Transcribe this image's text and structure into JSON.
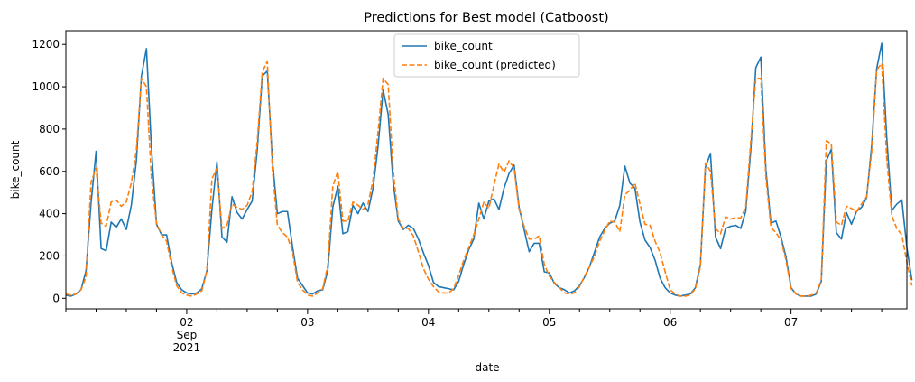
{
  "chart_data": {
    "type": "line",
    "title": "Predictions for Best model (Catboost)",
    "xlabel": "date",
    "ylabel": "bike_count",
    "ylim": [
      -50,
      1265
    ],
    "y_ticks": [
      0,
      200,
      400,
      600,
      800,
      1000,
      1200
    ],
    "x_ticks": [
      {
        "hour": 24,
        "label": "02",
        "sub": "Sep",
        "sub2": "2021"
      },
      {
        "hour": 48,
        "label": "03"
      },
      {
        "hour": 72,
        "label": "04"
      },
      {
        "hour": 96,
        "label": "05"
      },
      {
        "hour": 120,
        "label": "06"
      },
      {
        "hour": 144,
        "label": "07"
      }
    ],
    "x_range_hours": [
      0,
      167
    ],
    "x_start": "2021-09-01 00:00",
    "legend_position": "upper center",
    "colors": {
      "actual": "#1f77b4",
      "predicted": "#ff7f0e"
    },
    "series": [
      {
        "name": "bike_count",
        "style": "solid",
        "values": [
          15,
          10,
          20,
          40,
          130,
          450,
          695,
          235,
          225,
          360,
          335,
          375,
          325,
          440,
          650,
          1050,
          1180,
          710,
          350,
          300,
          300,
          170,
          75,
          40,
          25,
          20,
          25,
          45,
          130,
          420,
          645,
          290,
          265,
          480,
          405,
          375,
          420,
          460,
          700,
          1050,
          1075,
          655,
          400,
          410,
          410,
          245,
          95,
          60,
          25,
          20,
          35,
          40,
          130,
          430,
          530,
          305,
          315,
          440,
          400,
          450,
          410,
          520,
          720,
          985,
          870,
          545,
          365,
          325,
          345,
          330,
          280,
          215,
          155,
          75,
          55,
          50,
          45,
          40,
          80,
          160,
          230,
          280,
          450,
          375,
          460,
          470,
          420,
          520,
          590,
          630,
          430,
          325,
          220,
          260,
          260,
          125,
          120,
          70,
          50,
          40,
          25,
          35,
          60,
          100,
          150,
          220,
          290,
          330,
          355,
          365,
          440,
          625,
          545,
          520,
          360,
          275,
          240,
          180,
          95,
          50,
          25,
          15,
          10,
          15,
          20,
          50,
          160,
          620,
          685,
          290,
          235,
          330,
          340,
          345,
          330,
          410,
          700,
          1090,
          1140,
          610,
          355,
          365,
          290,
          195,
          50,
          20,
          10,
          10,
          10,
          20,
          80,
          650,
          705,
          310,
          280,
          405,
          350,
          410,
          430,
          475,
          720,
          1085,
          1205,
          760,
          415,
          445,
          465,
          240,
          85
        ]
      },
      {
        "name": "bike_count (predicted)",
        "style": "dashed",
        "values": [
          20,
          15,
          20,
          40,
          100,
          550,
          615,
          355,
          340,
          455,
          465,
          435,
          455,
          545,
          700,
          1040,
          1000,
          565,
          355,
          300,
          270,
          150,
          60,
          25,
          15,
          10,
          20,
          35,
          130,
          565,
          615,
          330,
          345,
          445,
          430,
          420,
          440,
          505,
          740,
          1070,
          1120,
          610,
          345,
          310,
          290,
          220,
          75,
          40,
          15,
          10,
          25,
          45,
          155,
          530,
          600,
          365,
          365,
          455,
          440,
          420,
          445,
          560,
          790,
          1040,
          1010,
          605,
          375,
          330,
          330,
          295,
          220,
          140,
          90,
          55,
          30,
          25,
          25,
          45,
          110,
          180,
          240,
          300,
          375,
          455,
          425,
          535,
          635,
          595,
          650,
          615,
          420,
          340,
          280,
          280,
          295,
          160,
          105,
          75,
          50,
          25,
          20,
          25,
          55,
          105,
          150,
          200,
          270,
          320,
          365,
          360,
          315,
          490,
          510,
          545,
          445,
          350,
          345,
          270,
          215,
          125,
          40,
          20,
          10,
          10,
          15,
          45,
          150,
          640,
          600,
          330,
          305,
          385,
          375,
          380,
          380,
          430,
          740,
          1040,
          1040,
          575,
          335,
          310,
          275,
          180,
          45,
          20,
          10,
          10,
          15,
          25,
          85,
          745,
          730,
          360,
          345,
          435,
          425,
          410,
          445,
          480,
          690,
          1080,
          1110,
          660,
          390,
          330,
          300,
          170,
          60
        ]
      }
    ]
  }
}
